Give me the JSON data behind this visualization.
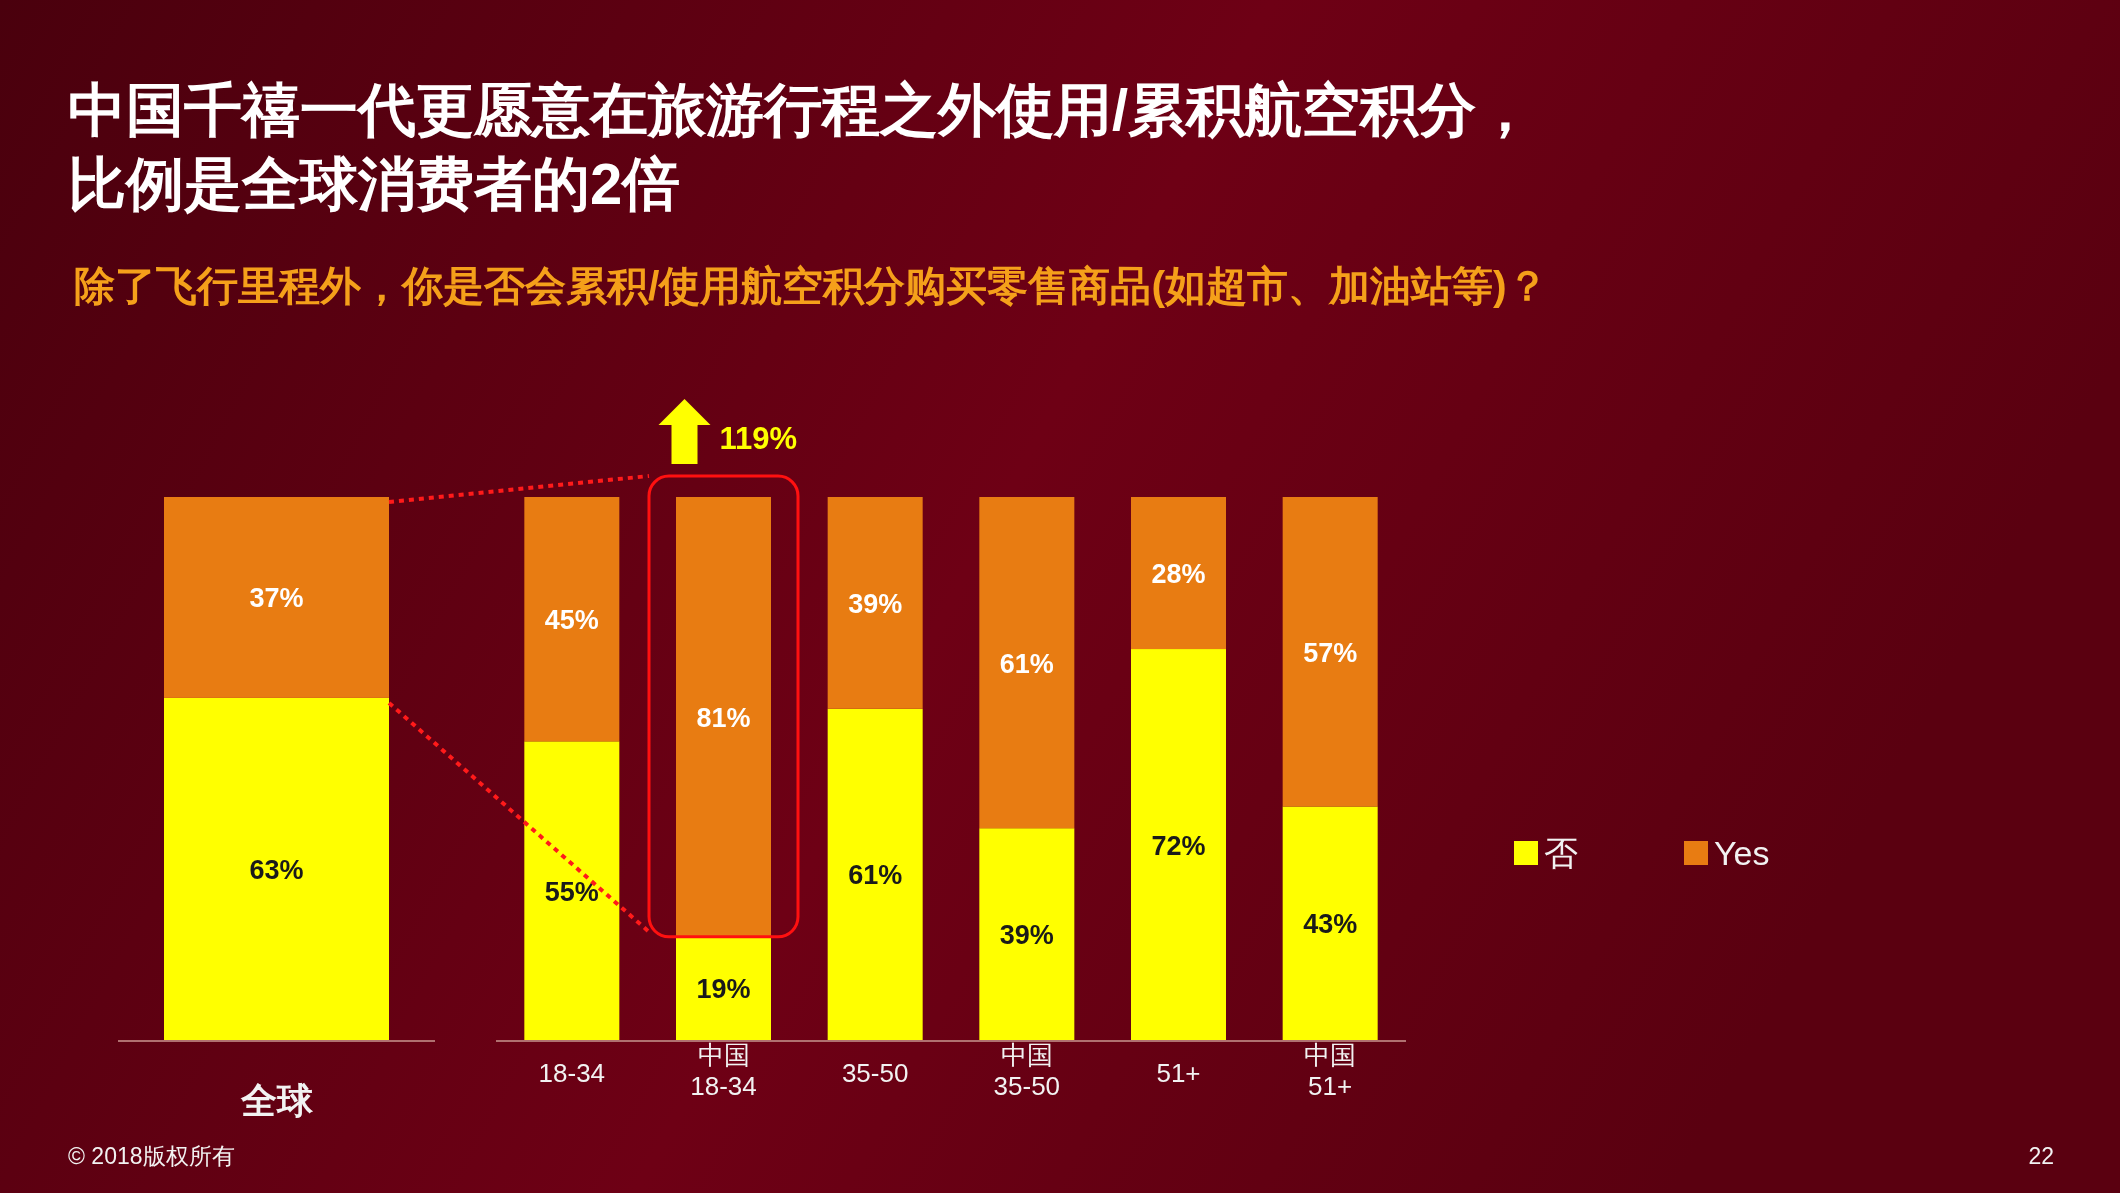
{
  "chart_data": [
    {
      "type": "bar",
      "stacked": true,
      "title": "中国千禧一代更愿意在旅游行程之外使用/累积航空积分，比例是全球消费者的2倍",
      "subtitle": "除了飞行里程外，你是否会累积/使用航空积分购买零售商品(如超市、加油站等)？",
      "categories": [
        "全球"
      ],
      "series": [
        {
          "color": "#ffff00",
          "values": [
            63
          ],
          "value_labels": [
            "63%"
          ]
        },
        {
          "color": "#e87c12",
          "values": [
            37
          ],
          "value_labels": [
            "37%"
          ]
        }
      ],
      "annotations": [
        "© 2018版权所有",
        "22"
      ]
    },
    {
      "type": "bar",
      "stacked": true,
      "categories": [
        "18-34",
        "中国\n18-34",
        "35-50",
        "中国\n35-50",
        "51+",
        "中国\n51+"
      ],
      "series": [
        {
          "name": "否",
          "color": "#ffff00",
          "values": [
            55,
            19,
            61,
            39,
            72,
            43
          ],
          "value_labels": [
            "55%",
            "19%",
            "61%",
            "39%",
            "72%",
            "43%"
          ]
        },
        {
          "name": "Yes",
          "color": "#e87c12",
          "values": [
            45,
            81,
            39,
            61,
            28,
            57
          ],
          "value_labels": [
            "45%",
            "81%",
            "39%",
            "61%",
            "28%",
            "57%"
          ]
        }
      ],
      "legend": "right",
      "annotations": [
        {
          "text": "119%",
          "x": "中国\n18-34",
          "y": 100
        }
      ]
    }
  ]
}
